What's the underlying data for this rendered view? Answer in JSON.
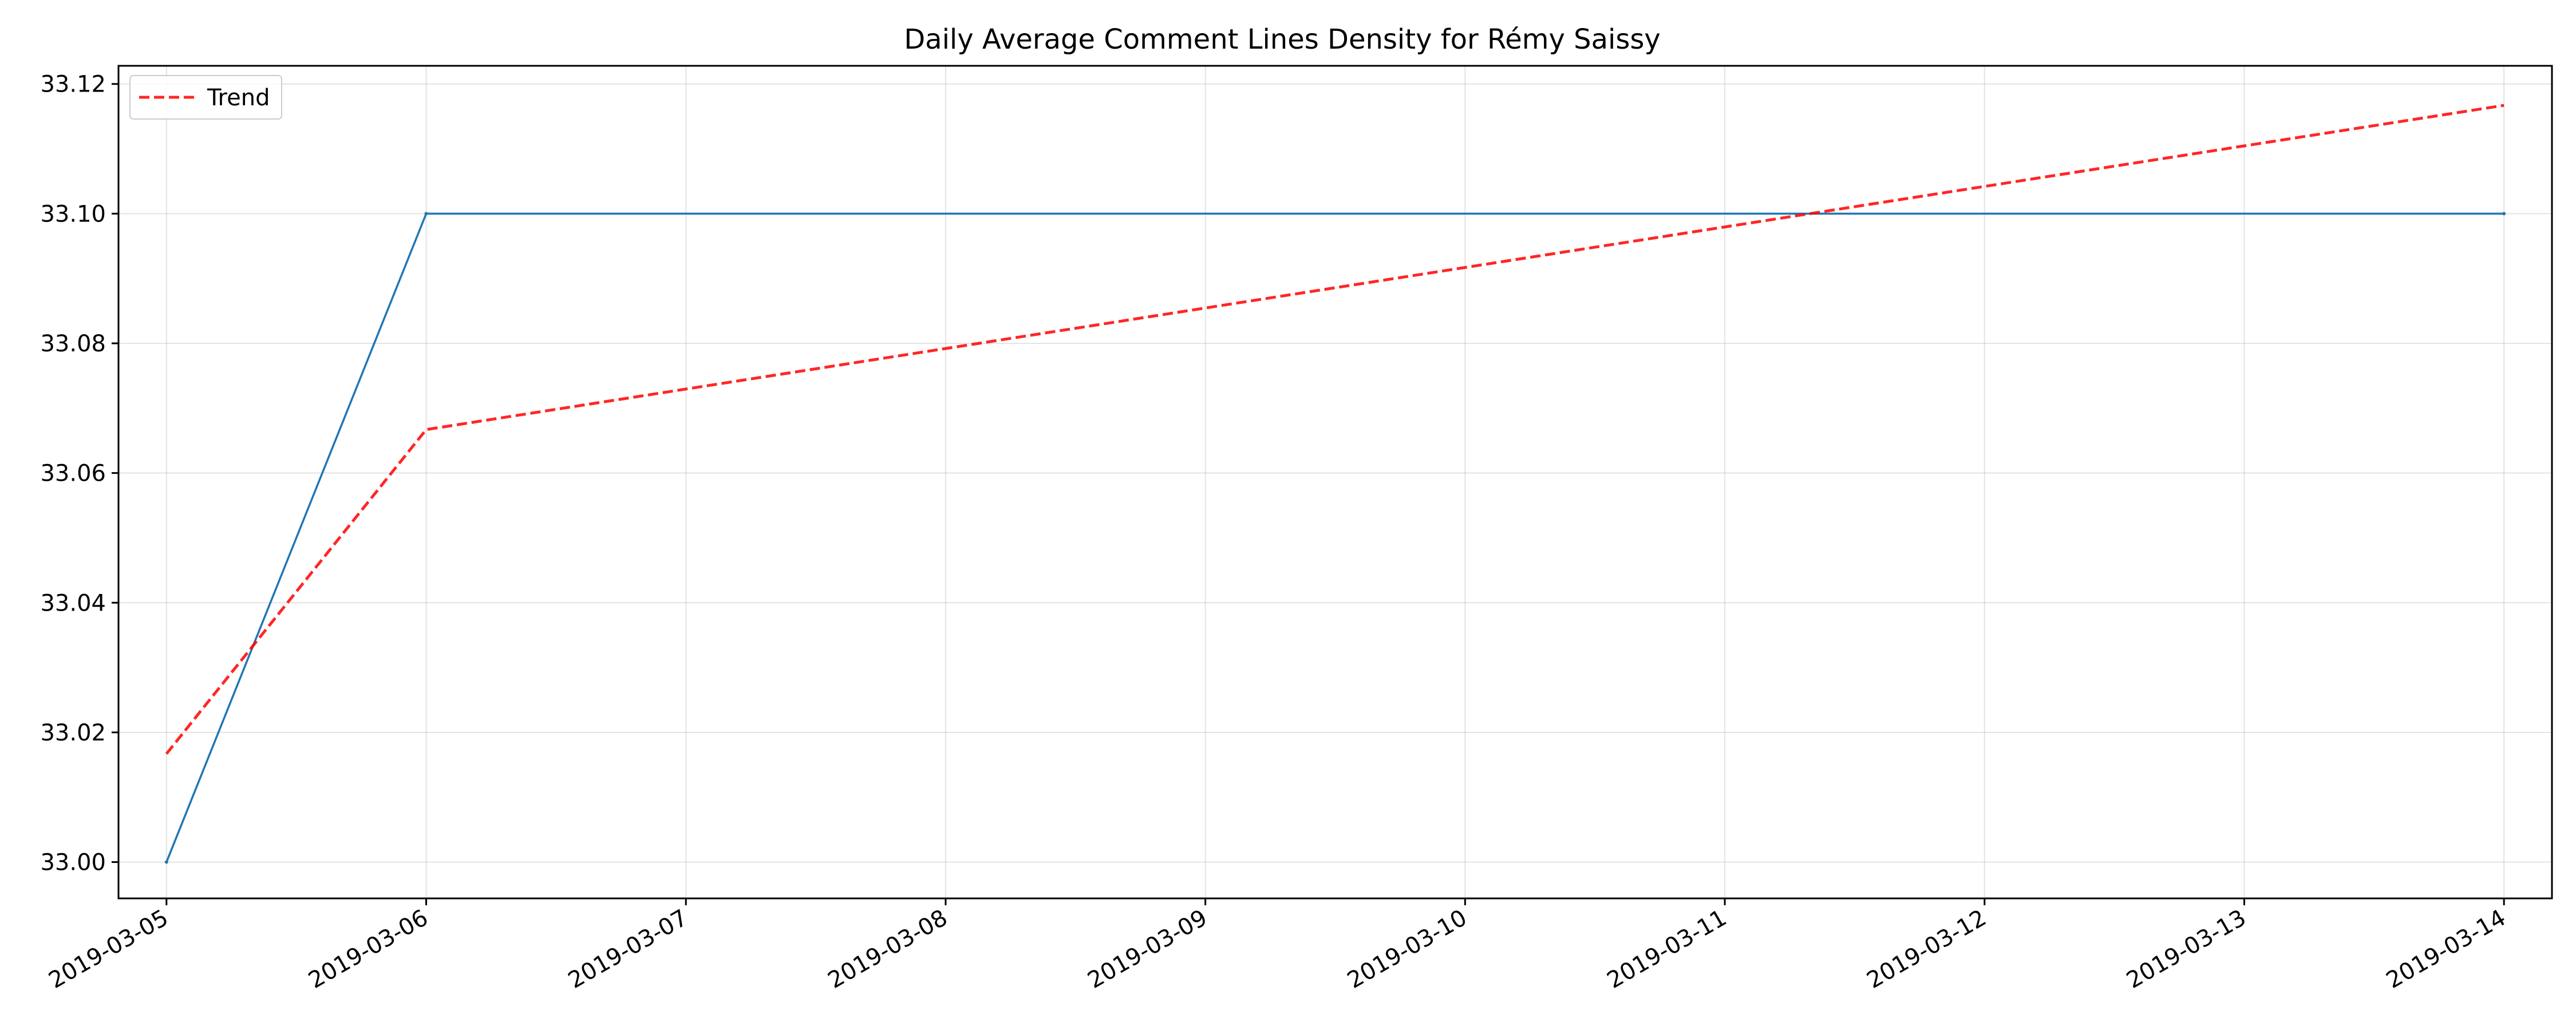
{
  "chart_data": {
    "type": "line",
    "title": "Daily Average Comment Lines Density for Rémy Saissy",
    "xlabel": "",
    "ylabel": "",
    "x": [
      "2019-03-05",
      "2019-03-06",
      "2019-03-14"
    ],
    "x_ticks": [
      "2019-03-05",
      "2019-03-06",
      "2019-03-07",
      "2019-03-08",
      "2019-03-09",
      "2019-03-10",
      "2019-03-11",
      "2019-03-12",
      "2019-03-13",
      "2019-03-14"
    ],
    "y_ticks": [
      "33.00",
      "33.02",
      "33.04",
      "33.06",
      "33.08",
      "33.10",
      "33.12"
    ],
    "xlim": [
      "2019-03-04T19:34",
      "2019-03-14T04:26"
    ],
    "ylim": [
      32.9944,
      33.1228
    ],
    "grid": true,
    "legend_position": "top-left",
    "series": [
      {
        "name": "",
        "color": "#1f77b4",
        "style": "solid",
        "x": [
          "2019-03-05",
          "2019-03-06",
          "2019-03-14"
        ],
        "values": [
          33.0,
          33.1,
          33.1
        ]
      },
      {
        "name": "Trend",
        "color": "#ff0000",
        "style": "dashed",
        "x": [
          "2019-03-05",
          "2019-03-06",
          "2019-03-14"
        ],
        "values": [
          33.0167,
          33.0667,
          33.1167
        ]
      }
    ]
  }
}
